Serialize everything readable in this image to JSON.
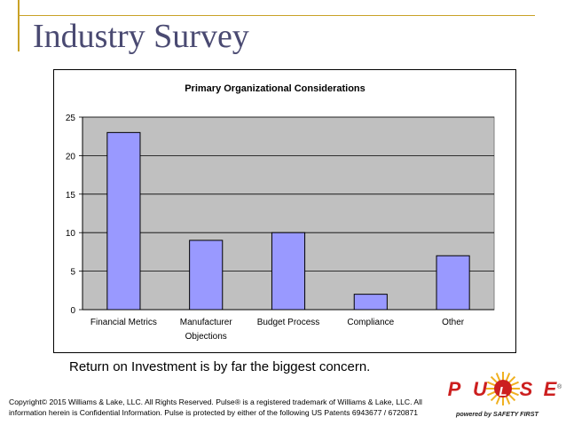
{
  "slide": {
    "title": "Industry Survey",
    "caption": "Return on Investment is by far the biggest concern.",
    "copyright": "Copyright© 2015 Williams & Lake, LLC. All Rights Reserved. Pulse® is a registered trademark of Williams & Lake, LLC. All information herein is Confidential Information. Pulse is protected by either of the following US Patents 6943677 / 6720871"
  },
  "logo": {
    "letters": [
      "P",
      "U",
      "L",
      "S",
      "E"
    ],
    "tagline": "powered by SAFETY FIRST",
    "trademark": "®",
    "colors": {
      "letter": "#cc1f1f",
      "sun": "#f0b020",
      "seal": "#cc1f1f"
    }
  },
  "chart_data": {
    "type": "bar",
    "title": "Primary Organizational Considerations",
    "categories": [
      "Financial Metrics",
      "Manufacturer Objections",
      "Budget Process",
      "Compliance",
      "Other"
    ],
    "category_lines": [
      [
        "Financial Metrics"
      ],
      [
        "Manufacturer",
        "Objections"
      ],
      [
        "Budget Process"
      ],
      [
        "Compliance"
      ],
      [
        "Other"
      ]
    ],
    "values": [
      23,
      9,
      10,
      2,
      7
    ],
    "ylim": [
      0,
      25
    ],
    "yticks": [
      0,
      5,
      10,
      15,
      20,
      25
    ],
    "grid": true,
    "colors": {
      "plot_bg": "#c0c0c0",
      "bar": "#9999ff",
      "bar_edge": "#000000"
    }
  }
}
